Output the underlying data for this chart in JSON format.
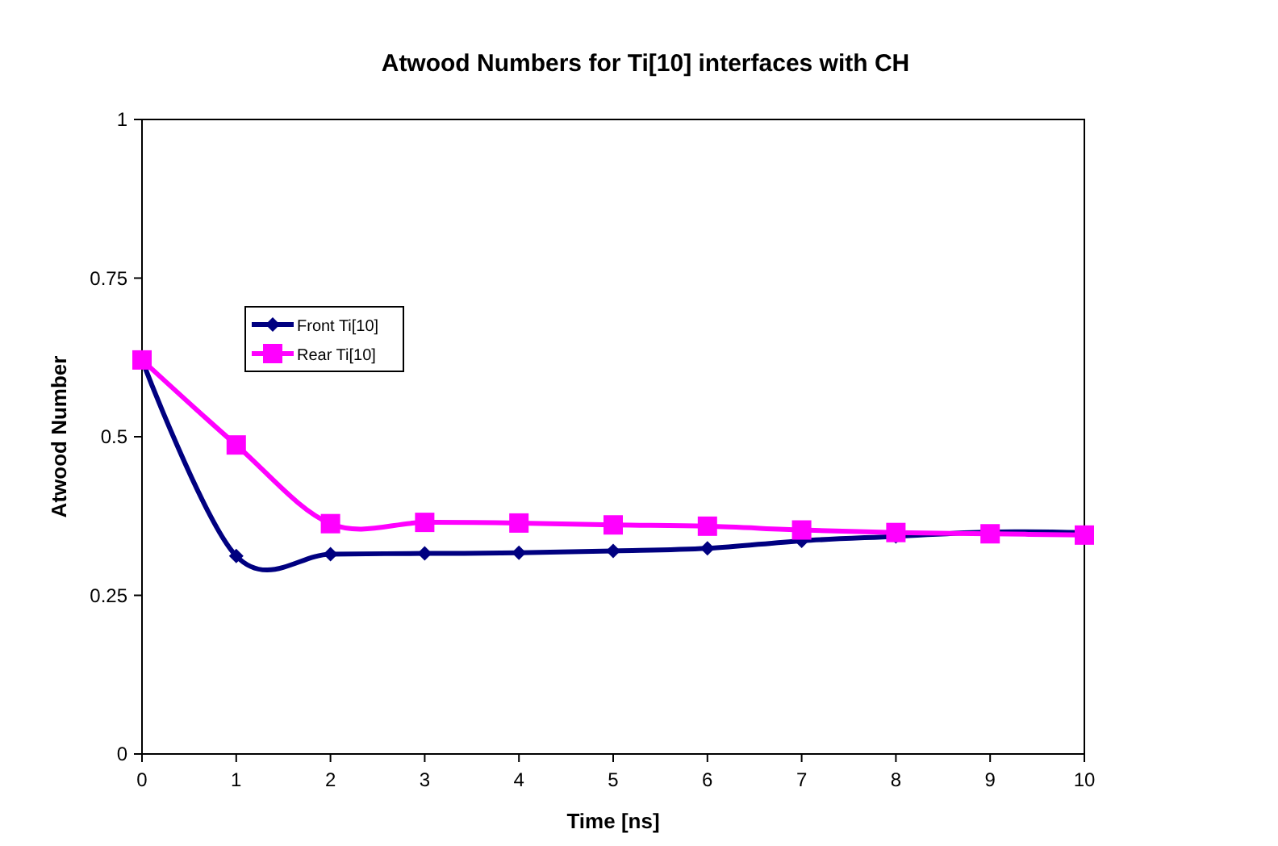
{
  "chart_data": {
    "type": "line",
    "title": "Atwood Numbers for Ti[10] interfaces with CH",
    "xlabel": "Time [ns]",
    "ylabel": "Atwood Number",
    "x": [
      0,
      1,
      2,
      3,
      4,
      5,
      6,
      7,
      8,
      9,
      10
    ],
    "series": [
      {
        "name": "Front Ti[10]",
        "color": "#000080",
        "marker": "diamond",
        "values": [
          0.621,
          0.312,
          0.315,
          0.316,
          0.317,
          0.32,
          0.324,
          0.336,
          0.343,
          0.35,
          0.349
        ]
      },
      {
        "name": "Rear Ti[10]",
        "color": "#ff00ff",
        "marker": "square",
        "values": [
          0.621,
          0.487,
          0.363,
          0.365,
          0.364,
          0.361,
          0.359,
          0.353,
          0.349,
          0.347,
          0.345
        ]
      }
    ],
    "xlim": [
      0,
      10
    ],
    "xticks": [
      0,
      1,
      2,
      3,
      4,
      5,
      6,
      7,
      8,
      9,
      10
    ],
    "ylim": [
      0,
      1
    ],
    "yticks": [
      0,
      0.25,
      0.5,
      0.75,
      1
    ],
    "grid": false,
    "legend": "top left"
  }
}
